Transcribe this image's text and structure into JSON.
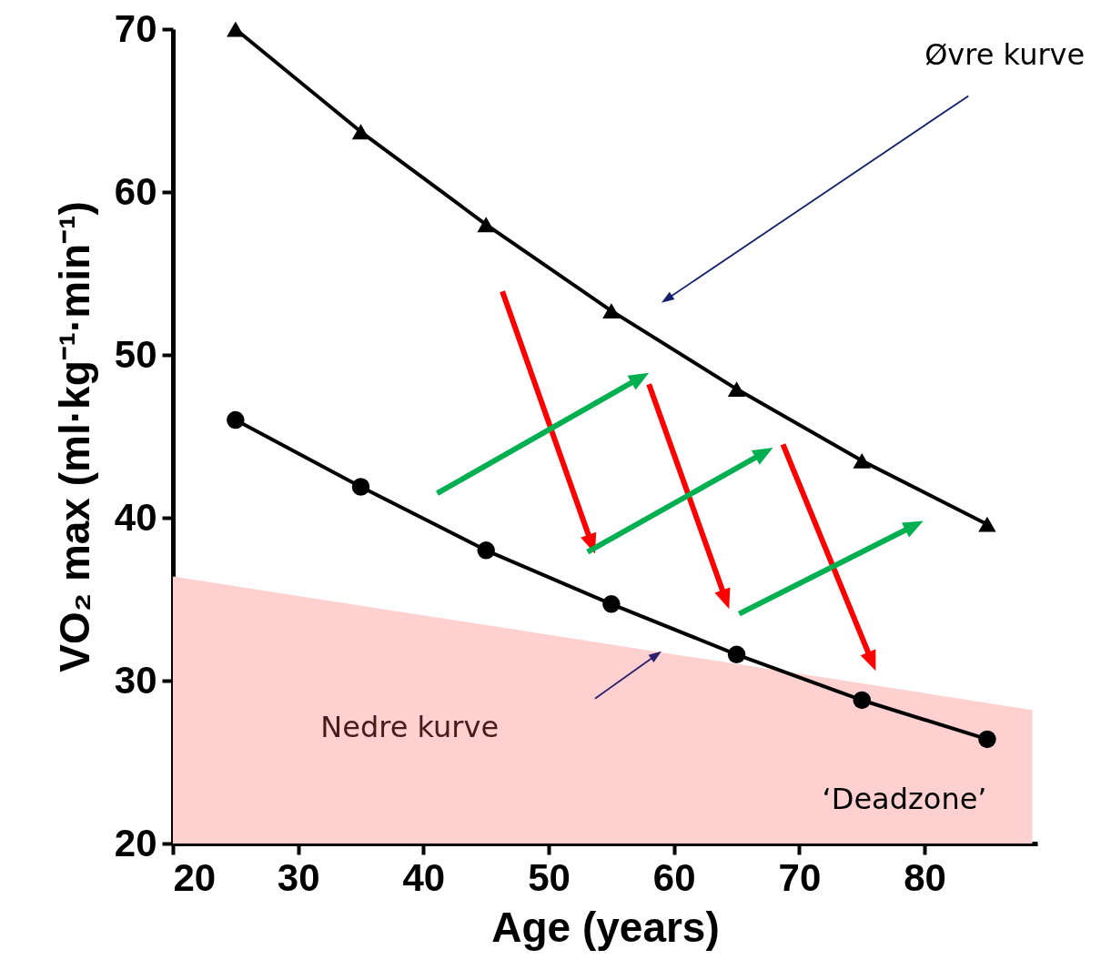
{
  "chart_data": {
    "type": "line",
    "xlabel": "Age (years)",
    "ylabel": "VO₂ max (ml·kg⁻¹·min⁻¹)",
    "x": [
      25,
      35,
      45,
      55,
      65,
      75,
      85
    ],
    "series": [
      {
        "color": "#000000",
        "marker": "triangle",
        "values": [
          70,
          63.7,
          58.0,
          52.7,
          47.9,
          43.5,
          39.6
        ]
      },
      {
        "color": "#000000",
        "marker": "circle",
        "values": [
          46.0,
          41.9,
          38.0,
          34.7,
          31.6,
          28.8,
          26.4
        ]
      },
      {
        "type": "area",
        "color": "#ffd0d0",
        "x": [
          20,
          88.6
        ],
        "values": [
          36.4,
          28.2
        ]
      }
    ],
    "xlim": [
      20,
      89
    ],
    "ylim": [
      20,
      70
    ],
    "xticks": [
      20,
      30,
      40,
      50,
      60,
      70,
      80
    ],
    "yticks": [
      20,
      30,
      40,
      50,
      60,
      70
    ],
    "grid": false,
    "annotations": [
      "Øvre kurve",
      "Nedre kurve",
      "‘Deadzone’"
    ]
  }
}
